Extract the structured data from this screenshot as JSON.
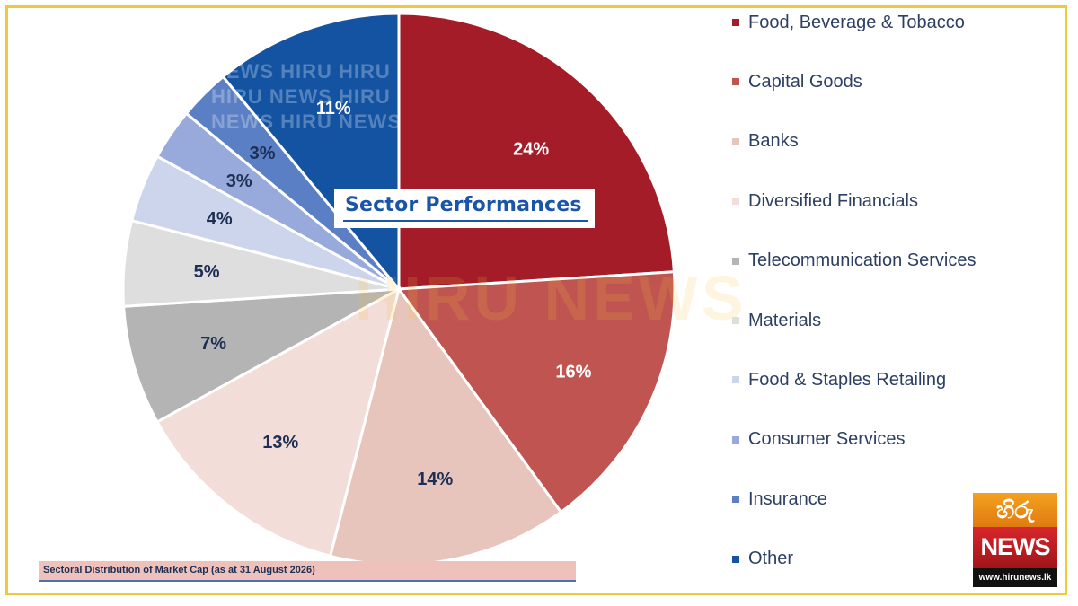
{
  "chart_data": {
    "type": "pie",
    "title": "Sector Performances",
    "caption": "Sectoral Distribution of Market Cap (as at 31 August 2026)",
    "legend_position": "right",
    "slices": [
      {
        "label": "Food, Beverage & Tobacco",
        "value": 24,
        "value_label": "24%",
        "color": "#a31c28",
        "text_color": "#ffffff"
      },
      {
        "label": "Capital Goods",
        "value": 16,
        "value_label": "16%",
        "color": "#c05450",
        "text_color": "#ffffff"
      },
      {
        "label": "Banks",
        "value": 14,
        "value_label": "14%",
        "color": "#e8c5bc",
        "text_color": "#1e2f55"
      },
      {
        "label": "Diversified Financials",
        "value": 13,
        "value_label": "13%",
        "color": "#f3ddd8",
        "text_color": "#1e2f55"
      },
      {
        "label": "Telecommunication Services",
        "value": 7,
        "value_label": "7%",
        "color": "#b4b4b4",
        "text_color": "#1e2f55"
      },
      {
        "label": "Materials",
        "value": 5,
        "value_label": "5%",
        "color": "#dedede",
        "text_color": "#1e2f55"
      },
      {
        "label": "Food & Staples Retailing",
        "value": 4,
        "value_label": "4%",
        "color": "#cdd5ec",
        "text_color": "#1e2f55"
      },
      {
        "label": "Consumer Services",
        "value": 3,
        "value_label": "3%",
        "color": "#98aadc",
        "text_color": "#1e2f55"
      },
      {
        "label": "Insurance",
        "value": 3,
        "value_label": "3%",
        "color": "#5b7fc4",
        "text_color": "#1e2f55"
      },
      {
        "label": "Other",
        "value": 11,
        "value_label": "11%",
        "color": "#1353a2",
        "text_color": "#ffffff"
      }
    ]
  },
  "watermark": {
    "lines": [
      "NEWS HIRU HIRU",
      "HIRU NEWS  HIRU",
      "NEWS HIRU NEWS"
    ],
    "center": "HIRU NEWS"
  },
  "logo": {
    "top_text": "හිරු",
    "mid_text": "NEWS",
    "url_text": "www.hirunews.lk",
    "colors": {
      "orange": "#f3a21f",
      "red": "#c81e25"
    }
  },
  "frame_color": "#f0c93a"
}
